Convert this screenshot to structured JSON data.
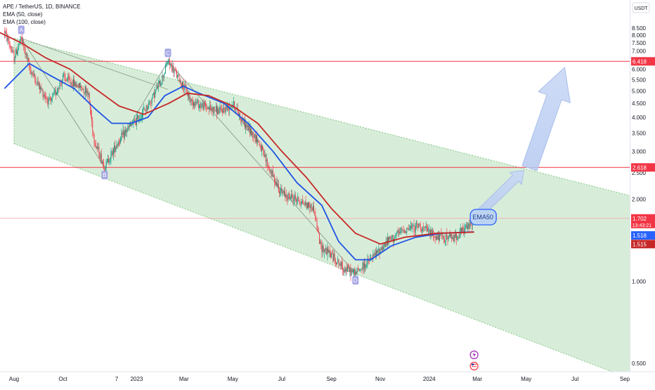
{
  "legend": {
    "symbol_line": "APE / TetherUS, 1D, BINANCE",
    "indicator_1": "EMA (50, close)",
    "indicator_2": "EMA (100, close)"
  },
  "chart_data": {
    "type": "candlestick",
    "currency_label": "USDT",
    "y_scale": "log",
    "y_ticks": [
      8.5,
      8.0,
      7.5,
      7.0,
      6.5,
      6.0,
      5.5,
      5.0,
      4.5,
      4.0,
      3.5,
      3.0,
      2.5,
      2.0,
      1.5,
      1.0,
      0.5
    ],
    "y_tick_labels": [
      "8.500",
      "8.000",
      "7.500",
      "7.000",
      "6.500",
      "6.000",
      "5.500",
      "5.000",
      "4.500",
      "4.000",
      "3.500",
      "3.000",
      "2.500",
      "2.000",
      "1.500",
      "1.000",
      "0.500"
    ],
    "x_tick_labels": [
      "Aug",
      "Oct",
      "7",
      "2023",
      "Mar",
      "May",
      "Jul",
      "Sep",
      "Nov",
      "2024",
      "Mar",
      "May",
      "Jul",
      "Sep"
    ],
    "x_tick_dates": [
      "2022-08-01",
      "2022-10-01",
      "2022-12-07",
      "2023-01-01",
      "2023-03-01",
      "2023-05-01",
      "2023-07-01",
      "2023-09-01",
      "2023-11-01",
      "2024-01-01",
      "2024-03-01",
      "2024-05-01",
      "2024-07-01",
      "2024-09-01"
    ],
    "price_path": [
      [
        "2022-07-20",
        8.3
      ],
      [
        "2022-08-01",
        6.6
      ],
      [
        "2022-08-10",
        7.8
      ],
      [
        "2022-08-20",
        6.1
      ],
      [
        "2022-09-01",
        5.2
      ],
      [
        "2022-09-15",
        4.5
      ],
      [
        "2022-10-01",
        5.6
      ],
      [
        "2022-10-15",
        5.3
      ],
      [
        "2022-11-01",
        5.0
      ],
      [
        "2022-11-09",
        3.3
      ],
      [
        "2022-11-22",
        2.62
      ],
      [
        "2022-12-07",
        3.2
      ],
      [
        "2022-12-20",
        3.6
      ],
      [
        "2023-01-01",
        3.9
      ],
      [
        "2023-01-15",
        4.4
      ],
      [
        "2023-02-01",
        5.5
      ],
      [
        "2023-02-09",
        6.418
      ],
      [
        "2023-02-25",
        5.4
      ],
      [
        "2023-03-10",
        4.6
      ],
      [
        "2023-03-25",
        4.4
      ],
      [
        "2023-04-15",
        4.2
      ],
      [
        "2023-05-01",
        4.5
      ],
      [
        "2023-05-15",
        3.8
      ],
      [
        "2023-06-01",
        3.3
      ],
      [
        "2023-06-15",
        2.6
      ],
      [
        "2023-07-01",
        2.1
      ],
      [
        "2023-07-20",
        2.0
      ],
      [
        "2023-08-10",
        1.85
      ],
      [
        "2023-08-18",
        1.35
      ],
      [
        "2023-09-01",
        1.25
      ],
      [
        "2023-09-15",
        1.12
      ],
      [
        "2023-10-01",
        1.07
      ],
      [
        "2023-10-20",
        1.2
      ],
      [
        "2023-11-10",
        1.4
      ],
      [
        "2023-12-01",
        1.55
      ],
      [
        "2023-12-20",
        1.6
      ],
      [
        "2024-01-10",
        1.45
      ],
      [
        "2024-02-01",
        1.45
      ],
      [
        "2024-02-20",
        1.6
      ],
      [
        "2024-02-26",
        1.702
      ]
    ],
    "series": [
      {
        "name": "EMA (50, close)",
        "color": "#1e53e5",
        "points": [
          [
            "2022-07-20",
            5.1
          ],
          [
            "2022-08-20",
            6.3
          ],
          [
            "2022-09-15",
            5.7
          ],
          [
            "2022-10-15",
            5.1
          ],
          [
            "2022-11-10",
            4.3
          ],
          [
            "2022-12-01",
            3.8
          ],
          [
            "2022-12-25",
            3.8
          ],
          [
            "2023-01-15",
            4.0
          ],
          [
            "2023-02-05",
            4.8
          ],
          [
            "2023-02-28",
            5.2
          ],
          [
            "2023-03-20",
            4.9
          ],
          [
            "2023-04-20",
            4.5
          ],
          [
            "2023-05-20",
            3.8
          ],
          [
            "2023-06-20",
            3.0
          ],
          [
            "2023-07-20",
            2.3
          ],
          [
            "2023-08-20",
            1.9
          ],
          [
            "2023-09-10",
            1.4
          ],
          [
            "2023-10-01",
            1.2
          ],
          [
            "2023-10-20",
            1.2
          ],
          [
            "2023-11-15",
            1.35
          ],
          [
            "2023-12-15",
            1.45
          ],
          [
            "2024-01-15",
            1.5
          ],
          [
            "2024-02-26",
            1.518
          ]
        ]
      },
      {
        "name": "EMA (100, close)",
        "color": "#c62828",
        "points": [
          [
            "2022-07-10",
            8.3
          ],
          [
            "2022-08-10",
            7.5
          ],
          [
            "2022-09-10",
            6.6
          ],
          [
            "2022-10-10",
            6.0
          ],
          [
            "2022-11-10",
            5.1
          ],
          [
            "2022-12-10",
            4.4
          ],
          [
            "2023-01-10",
            4.1
          ],
          [
            "2023-02-10",
            4.5
          ],
          [
            "2023-03-05",
            4.9
          ],
          [
            "2023-04-01",
            4.8
          ],
          [
            "2023-05-01",
            4.4
          ],
          [
            "2023-06-01",
            3.8
          ],
          [
            "2023-07-01",
            3.0
          ],
          [
            "2023-08-01",
            2.4
          ],
          [
            "2023-09-01",
            1.85
          ],
          [
            "2023-10-01",
            1.5
          ],
          [
            "2023-11-01",
            1.37
          ],
          [
            "2023-12-01",
            1.45
          ],
          [
            "2024-01-10",
            1.5
          ],
          [
            "2024-02-26",
            1.515
          ]
        ]
      }
    ],
    "horizontal_lines": [
      {
        "value": 6.418,
        "label": "6.418"
      },
      {
        "value": 2.618,
        "label": "2.618"
      }
    ],
    "price_badges": [
      {
        "value": 1.702,
        "label": "1.702",
        "sublabel": "13:43:21",
        "color": "#f23645"
      },
      {
        "value": 1.518,
        "label": "1.518",
        "color": "#2962ff"
      },
      {
        "value": 1.515,
        "label": "1.515",
        "color": "#c62828"
      }
    ],
    "channel": {
      "upper": [
        [
          "2022-08-01",
          7.8
        ],
        [
          "2024-09-25",
          2.0
        ]
      ],
      "lower": [
        [
          "2022-08-01",
          3.2
        ],
        [
          "2024-09-25",
          0.42
        ]
      ]
    },
    "pattern_points": [
      {
        "label": "A",
        "date": "2022-08-10",
        "value": 7.8
      },
      {
        "label": "B",
        "date": "2022-11-22",
        "value": 2.62
      },
      {
        "label": "C",
        "date": "2023-02-09",
        "value": 6.418
      },
      {
        "label": "D",
        "date": "2023-10-01",
        "value": 1.07
      }
    ],
    "callout": {
      "text": "EMA50",
      "date": "2024-03-08",
      "value": 1.72
    },
    "projection_arrows": [
      {
        "from": [
          "2024-02-28",
          1.72
        ],
        "to": [
          "2024-04-28",
          2.55
        ]
      },
      {
        "from": [
          "2024-05-05",
          2.6
        ],
        "to": [
          "2024-06-18",
          6.1
        ]
      }
    ],
    "event_icons": [
      {
        "name": "dividend-icon",
        "date": "2024-02-26",
        "color": "#9c27b0"
      },
      {
        "name": "us-flag-icon",
        "date": "2024-02-26",
        "color": "#f23645"
      }
    ]
  }
}
